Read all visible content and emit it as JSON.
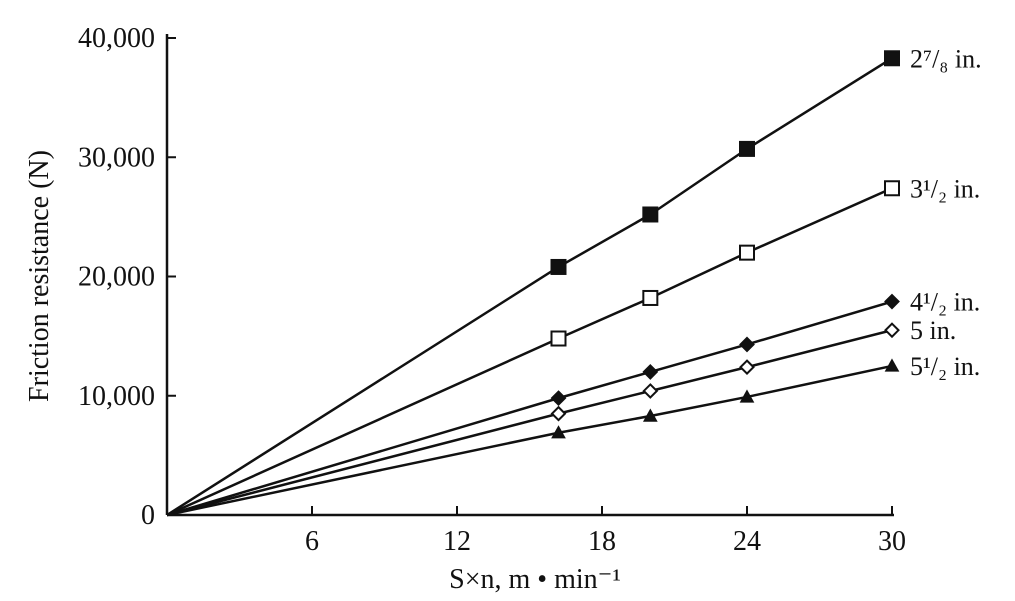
{
  "chart_data": {
    "type": "line",
    "title": "",
    "xlabel": "S×n, m • min⁻¹",
    "ylabel": "Friction resistance (N)",
    "xlim": [
      0,
      30
    ],
    "ylim": [
      0,
      40000
    ],
    "x_ticks": [
      0,
      6,
      12,
      18,
      24,
      30
    ],
    "x_tick_labels": [
      "",
      "6",
      "12",
      "18",
      "24",
      "30"
    ],
    "y_ticks": [
      0,
      10000,
      20000,
      30000,
      40000
    ],
    "y_tick_labels": [
      "0",
      "10,000",
      "20,000",
      "30,000",
      "40,000"
    ],
    "grid": false,
    "legend": "labels at line ends (right)",
    "series": [
      {
        "name": "2⁷/₈ in.",
        "marker": "filled-square",
        "x": [
          0,
          16.2,
          20,
          24,
          30
        ],
        "y": [
          0,
          20800,
          25200,
          30700,
          38300
        ]
      },
      {
        "name": "3¹/₂ in.",
        "marker": "open-square",
        "x": [
          0,
          16.2,
          20,
          24,
          30
        ],
        "y": [
          0,
          14800,
          18200,
          22000,
          27400
        ]
      },
      {
        "name": "4¹/₂ in.",
        "marker": "filled-diamond",
        "x": [
          0,
          16.2,
          20,
          24,
          30
        ],
        "y": [
          0,
          9800,
          12000,
          14300,
          17900
        ]
      },
      {
        "name": "5 in.",
        "marker": "open-diamond",
        "x": [
          0,
          16.2,
          20,
          24,
          30
        ],
        "y": [
          0,
          8500,
          10400,
          12400,
          15500
        ]
      },
      {
        "name": "5¹/₂ in.",
        "marker": "filled-triangle",
        "x": [
          0,
          16.2,
          20,
          24,
          30
        ],
        "y": [
          0,
          6900,
          8300,
          9900,
          12500
        ]
      }
    ],
    "colors": {
      "line": "#111111",
      "background": "#ffffff"
    }
  }
}
